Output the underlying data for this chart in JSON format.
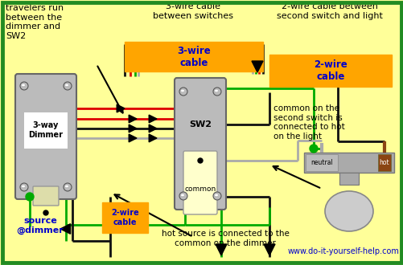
{
  "bg": "#FFFF99",
  "green_border": "#228B22",
  "orange": "#FFA500",
  "blue": "#0000CC",
  "green_w": "#00AA00",
  "red_w": "#DD0000",
  "black_w": "#111111",
  "gray_w": "#AAAAAA",
  "white_w": "#DDDDDD",
  "brown_w": "#8B4513",
  "switch_gray": "#AAAAAA",
  "switch_dark": "#888888",
  "screw_gray": "#BBBBBB",
  "toggle_cream": "#FFFFCC",
  "label_travelers": "travelers run\nbetween the\ndimmer and\nSW2",
  "label_3wire_top": "3-wire cable\nbetween switches",
  "label_2wire_top": "2-wire cable between\nsecond switch and light",
  "label_3wire_box": "3-wire\ncable",
  "label_2wire_right": "2-wire\ncable",
  "label_2wire_left": "2-wire\ncable",
  "label_source": "source\n@dimmer",
  "label_hot_source": "hot source is connected to the\ncommon on the dimmer",
  "label_common_info": "common on the\nsecond switch is\nconnected to hot\non the light",
  "label_dimmer": "3-way\nDimmer",
  "label_sw2": "SW2",
  "label_common": "common",
  "label_neutral": "neutral",
  "label_hot": "hot",
  "label_website": "www.do-it-yourself-help.com"
}
